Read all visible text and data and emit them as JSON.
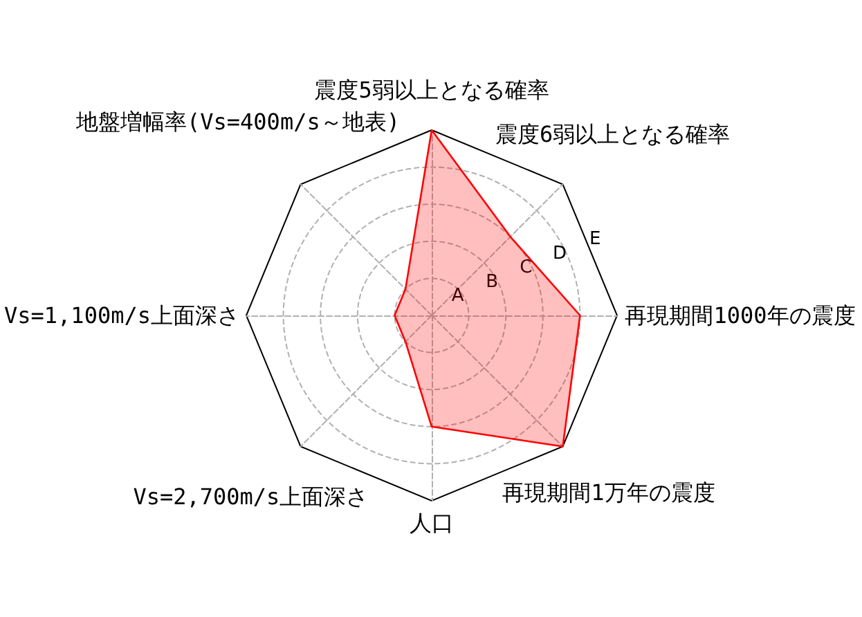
{
  "chart_data": {
    "type": "radar",
    "categories": [
      "震度5弱以上となる確率",
      "震度6弱以上となる確率",
      "再現期間1000年の震度",
      "再現期間1万年の震度",
      "人口",
      "Vs=2,700m/s上面深さ",
      "Vs=1,100m/s上面深さ",
      "地盤増幅率(Vs=400m/s～地表)"
    ],
    "series": [
      {
        "color": "#ff0000",
        "values": [
          5,
          3,
          4,
          5,
          3,
          1,
          1,
          1
        ]
      }
    ],
    "ylim": [
      0,
      5
    ],
    "yticks": [
      {
        "value": 1,
        "label": "A"
      },
      {
        "value": 2,
        "label": "B"
      },
      {
        "value": 3,
        "label": "C"
      },
      {
        "value": 4,
        "label": "D"
      },
      {
        "value": 5,
        "label": "E"
      }
    ],
    "grid": true,
    "line_style": "solid"
  }
}
